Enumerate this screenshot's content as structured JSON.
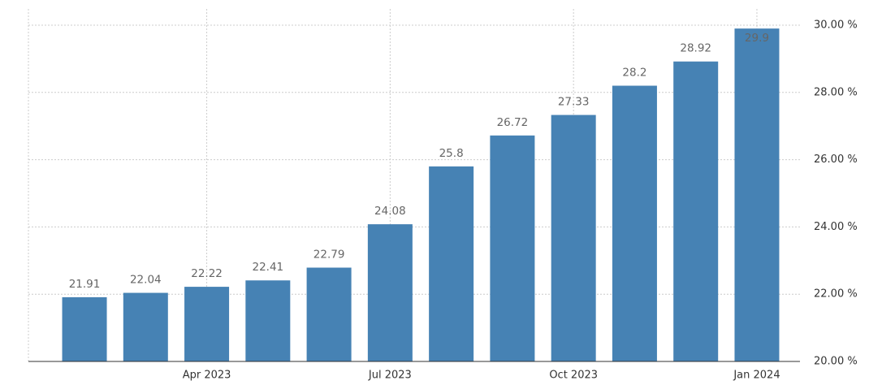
{
  "chart_data": {
    "type": "bar",
    "categories": [
      null,
      null,
      "Apr 2023",
      null,
      null,
      "Jul 2023",
      null,
      null,
      "Oct 2023",
      null,
      null,
      "Jan 2024"
    ],
    "values": [
      21.91,
      22.04,
      22.22,
      22.41,
      22.79,
      24.08,
      25.8,
      26.72,
      27.33,
      28.2,
      28.92,
      29.9
    ],
    "color": "#4682b4",
    "ylim": [
      20,
      30
    ],
    "yticks": [
      {
        "value": 20,
        "label": "20.00 %"
      },
      {
        "value": 22,
        "label": "22.00 %"
      },
      {
        "value": 24,
        "label": "24.00 %"
      },
      {
        "value": 26,
        "label": "26.00 %"
      },
      {
        "value": 28,
        "label": "28.00 %"
      },
      {
        "value": 30,
        "label": "30.00 %"
      }
    ],
    "grid": true
  }
}
